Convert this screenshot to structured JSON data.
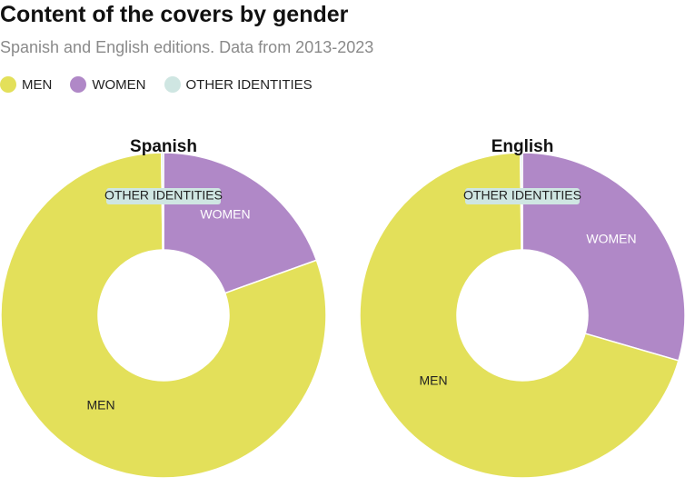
{
  "header": {
    "title": "Content of the covers by gender",
    "subtitle": "Spanish and English editions. Data from 2013-2023"
  },
  "legend": [
    {
      "label": "MEN",
      "color": "#e3e05a"
    },
    {
      "label": "WOMEN",
      "color": "#b088c7"
    },
    {
      "label": "OTHER IDENTITIES",
      "color": "#cfe6e2"
    }
  ],
  "chart_data": [
    {
      "type": "pie",
      "title": "Spanish",
      "slices": [
        {
          "label": "WOMEN",
          "value": 19.5,
          "color": "#b088c7",
          "label_color": "#ffffff"
        },
        {
          "label": "MEN",
          "value": 80.3,
          "color": "#e3e05a",
          "label_color": "#222222"
        },
        {
          "label": "OTHER IDENTITIES",
          "value": 0.2,
          "color": "#cfe6e2",
          "label_color": "#222222"
        }
      ]
    },
    {
      "type": "pie",
      "title": "English",
      "slices": [
        {
          "label": "WOMEN",
          "value": 29.5,
          "color": "#b088c7",
          "label_color": "#ffffff"
        },
        {
          "label": "MEN",
          "value": 70.3,
          "color": "#e3e05a",
          "label_color": "#222222"
        },
        {
          "label": "OTHER IDENTITIES",
          "value": 0.2,
          "color": "#cfe6e2",
          "label_color": "#222222"
        }
      ]
    }
  ]
}
